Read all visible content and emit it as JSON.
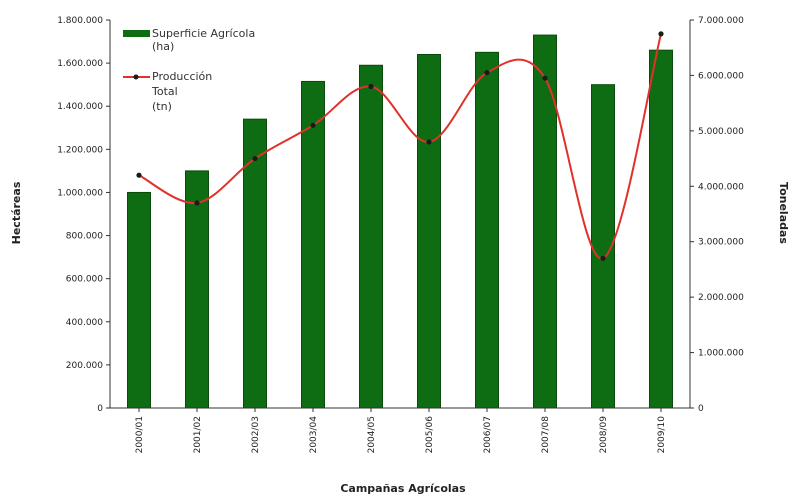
{
  "chart_data": {
    "type": "bar",
    "categories": [
      "2000/01",
      "2001/02",
      "2002/03",
      "2003/04",
      "2004/05",
      "2005/06",
      "2006/07",
      "2007/08",
      "2008/09",
      "2009/10"
    ],
    "series": [
      {
        "name": "Superficie Agrícola (ha)",
        "type": "bar",
        "axis": "left",
        "values": [
          1000000,
          1100000,
          1340000,
          1515000,
          1590000,
          1640000,
          1650000,
          1730000,
          1500000,
          1660000
        ]
      },
      {
        "name": "Producción Total (tn)",
        "type": "line",
        "axis": "right",
        "values": [
          4200000,
          3700000,
          4500000,
          5100000,
          5800000,
          4800000,
          6050000,
          5950000,
          2700000,
          6750000
        ]
      }
    ],
    "legend_lines": [
      [
        "Superficie Agrícola",
        "(ha)"
      ],
      [
        "Producción",
        "Total",
        "(tn)"
      ]
    ],
    "xlabel": "Campañas Agrícolas",
    "ylabel": "Hectáreas",
    "y2label": "Toneladas",
    "ylim": [
      0,
      1800000
    ],
    "y2lim": [
      0,
      7000000
    ],
    "yticks": [
      "0",
      "200.000",
      "400.000",
      "600.000",
      "800.000",
      "1.000.000",
      "1.200.000",
      "1.400.000",
      "1.600.000",
      "1.800.000"
    ],
    "y2ticks": [
      "0",
      "1.000.000",
      "2.000.000",
      "3.000.000",
      "4.000.000",
      "5.000.000",
      "6.000.000",
      "7.000.000"
    ],
    "grid": false,
    "legend_position": "top-left",
    "colors": {
      "bar_fill": "#0e6d12",
      "bar_edge": "#0a4a0c",
      "line": "#e0312b",
      "marker": "#1a1a1a",
      "axis": "#333333"
    }
  }
}
